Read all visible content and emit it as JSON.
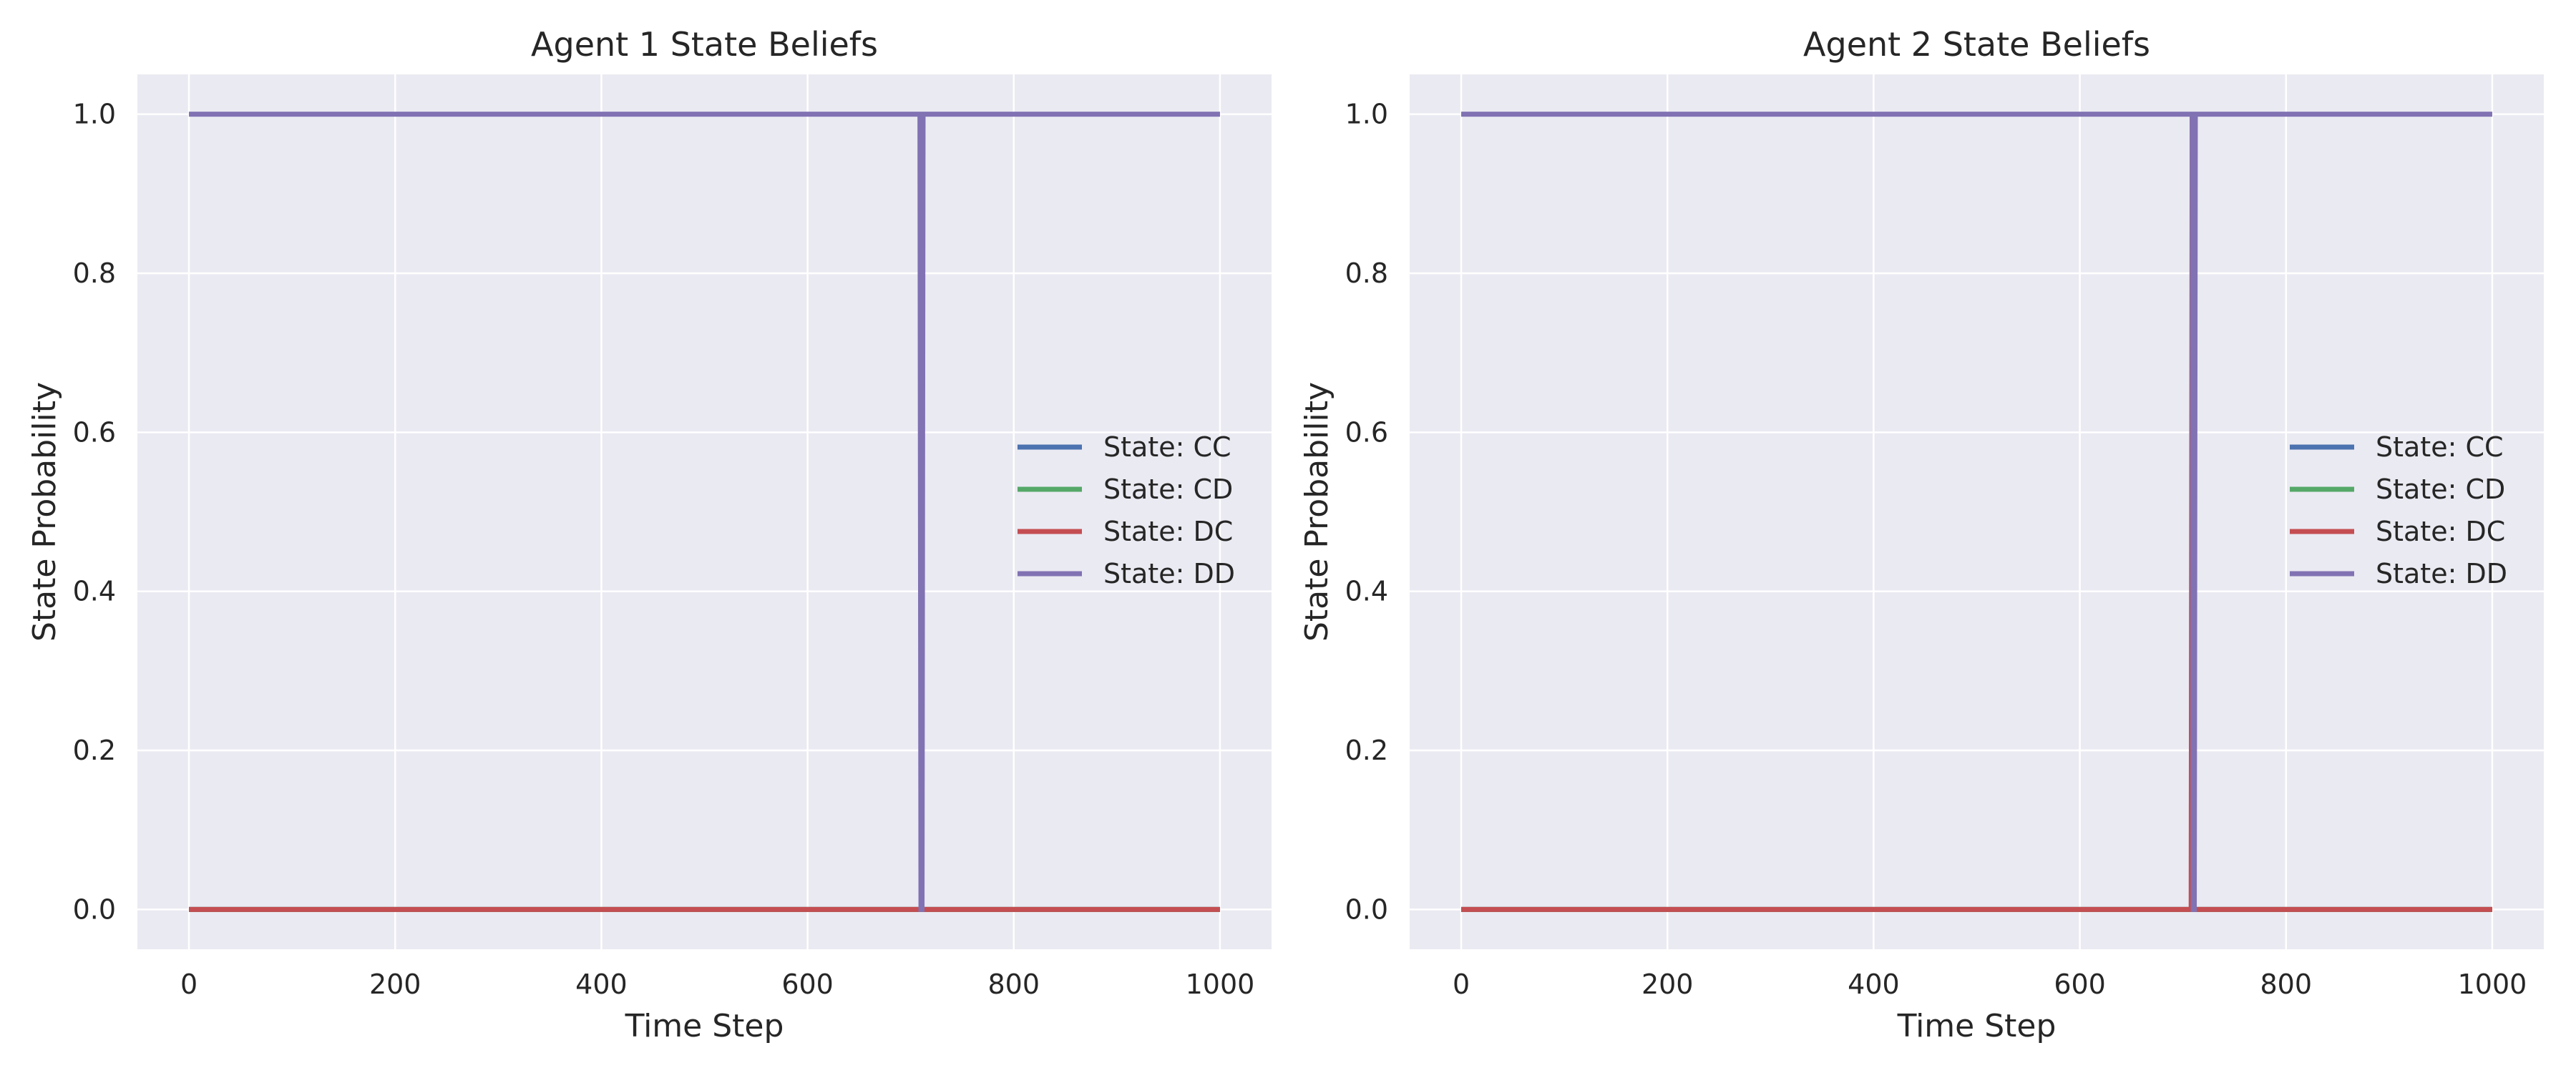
{
  "chart_data": [
    {
      "type": "line",
      "title": "Agent 1 State Beliefs",
      "xlabel": "Time Step",
      "ylabel": "State Probability",
      "xlim": [
        -50,
        1050
      ],
      "ylim": [
        -0.05,
        1.05
      ],
      "xticks": [
        0,
        200,
        400,
        600,
        800,
        1000
      ],
      "xtick_labels": [
        "0",
        "200",
        "400",
        "600",
        "800",
        "1000"
      ],
      "yticks": [
        0.0,
        0.2,
        0.4,
        0.6,
        0.8,
        1.0
      ],
      "ytick_labels": [
        "0.0",
        "0.2",
        "0.4",
        "0.6",
        "0.8",
        "1.0"
      ],
      "grid": true,
      "legend": "center-right",
      "series": [
        {
          "name": "State: CC",
          "color": "#4c72b0",
          "x": [
            0,
            709,
            710,
            1000
          ],
          "y": [
            0,
            0,
            0,
            0
          ]
        },
        {
          "name": "State: CD",
          "color": "#55a868",
          "x": [
            0,
            709,
            710,
            1000
          ],
          "y": [
            0,
            0,
            0,
            0
          ]
        },
        {
          "name": "State: DC",
          "color": "#c44e52",
          "x": [
            0,
            709,
            710,
            1000
          ],
          "y": [
            0,
            0,
            0,
            0
          ]
        },
        {
          "name": "State: DD",
          "color": "#8172b3",
          "x": [
            0,
            709,
            710,
            711,
            712,
            1000
          ],
          "y": [
            1,
            1,
            0,
            0,
            1,
            1
          ]
        }
      ]
    },
    {
      "type": "line",
      "title": "Agent 2 State Beliefs",
      "xlabel": "Time Step",
      "ylabel": "State Probability",
      "xlim": [
        -50,
        1050
      ],
      "ylim": [
        -0.05,
        1.05
      ],
      "xticks": [
        0,
        200,
        400,
        600,
        800,
        1000
      ],
      "xtick_labels": [
        "0",
        "200",
        "400",
        "600",
        "800",
        "1000"
      ],
      "yticks": [
        0.0,
        0.2,
        0.4,
        0.6,
        0.8,
        1.0
      ],
      "ytick_labels": [
        "0.0",
        "0.2",
        "0.4",
        "0.6",
        "0.8",
        "1.0"
      ],
      "grid": true,
      "legend": "center-right",
      "series": [
        {
          "name": "State: CC",
          "color": "#4c72b0",
          "x": [
            0,
            709,
            710,
            1000
          ],
          "y": [
            0,
            0,
            0,
            0
          ]
        },
        {
          "name": "State: CD",
          "color": "#55a868",
          "x": [
            0,
            709,
            710,
            1000
          ],
          "y": [
            0,
            0,
            0,
            0
          ]
        },
        {
          "name": "State: DC",
          "color": "#c44e52",
          "x": [
            0,
            708,
            709,
            710,
            1000
          ],
          "y": [
            0,
            0,
            1,
            0,
            0
          ]
        },
        {
          "name": "State: DD",
          "color": "#8172b3",
          "x": [
            0,
            709,
            710,
            711,
            712,
            1000
          ],
          "y": [
            1,
            1,
            0,
            0,
            1,
            1
          ]
        }
      ]
    }
  ]
}
